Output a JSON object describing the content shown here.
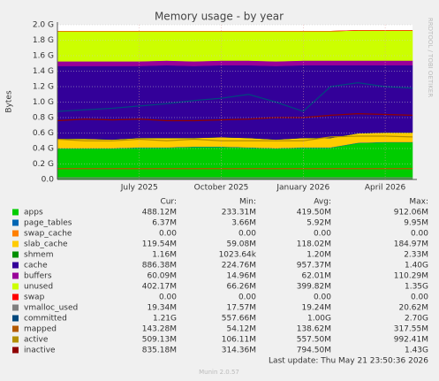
{
  "chart_data": {
    "type": "area",
    "title": "Memory usage - by year",
    "y_label": "Bytes",
    "watermark": "RRDTOOL / TOBI OETIKER",
    "categories": [
      null,
      null,
      null,
      "July 2025",
      null,
      null,
      "October 2025",
      null,
      null,
      "January 2026",
      null,
      null,
      "April 2026",
      null
    ],
    "ylim": [
      0,
      2.0
    ],
    "yticks": [
      {
        "value": 0,
        "label": "0.0"
      },
      {
        "value": 0.2,
        "label": "0.2 G"
      },
      {
        "value": 0.4,
        "label": "0.4 G"
      },
      {
        "value": 0.6,
        "label": "0.6 G"
      },
      {
        "value": 0.8,
        "label": "0.8 G"
      },
      {
        "value": 1.0,
        "label": "1.0 G"
      },
      {
        "value": 1.2,
        "label": "1.2 G"
      },
      {
        "value": 1.4,
        "label": "1.4 G"
      },
      {
        "value": 1.6,
        "label": "1.6 G"
      },
      {
        "value": 1.8,
        "label": "1.8 G"
      },
      {
        "value": 2.0,
        "label": "2.0 G"
      }
    ],
    "grid": true,
    "stat_headers": [
      "Cur:",
      "Min:",
      "Avg:",
      "Max:"
    ],
    "series": [
      {
        "name": "apps",
        "color": "#00cc00",
        "stack": true,
        "values": [
          0.4,
          0.4,
          0.4,
          0.41,
          0.41,
          0.42,
          0.42,
          0.41,
          0.4,
          0.41,
          0.41,
          0.47,
          0.48,
          0.48
        ],
        "stats": [
          "488.12M",
          "233.31M",
          "419.50M",
          "912.06M"
        ]
      },
      {
        "name": "page_tables",
        "color": "#0066b3",
        "stack": true,
        "values": [
          0.006,
          0.006,
          0.006,
          0.006,
          0.006,
          0.006,
          0.006,
          0.006,
          0.006,
          0.006,
          0.006,
          0.006,
          0.006,
          0.006
        ],
        "stats": [
          "6.37M",
          "3.66M",
          "5.92M",
          "9.95M"
        ]
      },
      {
        "name": "swap_cache",
        "color": "#ff8000",
        "stack": true,
        "values": [
          0,
          0,
          0,
          0,
          0,
          0,
          0,
          0,
          0,
          0,
          0,
          0,
          0,
          0
        ],
        "stats": [
          "0.00",
          "0.00",
          "0.00",
          "0.00"
        ]
      },
      {
        "name": "slab_cache",
        "color": "#ffcc00",
        "stack": true,
        "values": [
          0.12,
          0.12,
          0.11,
          0.12,
          0.12,
          0.11,
          0.12,
          0.12,
          0.11,
          0.12,
          0.12,
          0.12,
          0.12,
          0.12
        ],
        "stats": [
          "119.54M",
          "59.08M",
          "118.02M",
          "184.97M"
        ]
      },
      {
        "name": "shmem",
        "color": "#008f00",
        "stack": true,
        "values": [
          0.001,
          0.001,
          0.001,
          0.001,
          0.001,
          0.001,
          0.001,
          0.001,
          0.001,
          0.001,
          0.001,
          0.001,
          0.001,
          0.001
        ],
        "stats": [
          "1.16M",
          "1023.64k",
          "1.20M",
          "2.33M"
        ]
      },
      {
        "name": "cache",
        "color": "#330099",
        "stack": true,
        "values": [
          0.94,
          0.94,
          0.95,
          0.93,
          0.94,
          0.93,
          0.93,
          0.94,
          0.95,
          0.94,
          0.94,
          0.88,
          0.87,
          0.87
        ],
        "stats": [
          "886.38M",
          "224.76M",
          "957.37M",
          "1.40G"
        ]
      },
      {
        "name": "buffers",
        "color": "#990099",
        "stack": true,
        "values": [
          0.06,
          0.06,
          0.06,
          0.06,
          0.06,
          0.06,
          0.06,
          0.06,
          0.06,
          0.06,
          0.06,
          0.06,
          0.06,
          0.06
        ],
        "stats": [
          "60.09M",
          "14.96M",
          "62.01M",
          "110.29M"
        ]
      },
      {
        "name": "unused",
        "color": "#ccff00",
        "stack": true,
        "values": [
          0.39,
          0.39,
          0.39,
          0.39,
          0.38,
          0.39,
          0.38,
          0.38,
          0.39,
          0.38,
          0.38,
          0.39,
          0.39,
          0.39
        ],
        "stats": [
          "402.17M",
          "66.26M",
          "399.82M",
          "1.35G"
        ]
      },
      {
        "name": "swap",
        "color": "#ff0000",
        "stack": true,
        "values": [
          0,
          0,
          0,
          0,
          0,
          0,
          0,
          0,
          0,
          0,
          0,
          0,
          0,
          0
        ],
        "stats": [
          "0.00",
          "0.00",
          "0.00",
          "0.00"
        ]
      },
      {
        "name": "vmalloc_used",
        "color": "#808080",
        "stack": false,
        "values": [
          0.02,
          0.02,
          0.02,
          0.02,
          0.02,
          0.02,
          0.02,
          0.02,
          0.02,
          0.02,
          0.02,
          0.02,
          0.02,
          0.02
        ],
        "stats": [
          "19.34M",
          "17.57M",
          "19.24M",
          "20.62M"
        ]
      },
      {
        "name": "committed",
        "color": "#00487d",
        "stack": false,
        "values": [
          0.88,
          0.9,
          0.92,
          0.95,
          0.98,
          1.02,
          1.05,
          1.1,
          1.0,
          0.88,
          1.2,
          1.25,
          1.2,
          1.18
        ],
        "stats": [
          "1.21G",
          "557.66M",
          "1.00G",
          "2.70G"
        ]
      },
      {
        "name": "mapped",
        "color": "#b35a00",
        "stack": false,
        "values": [
          0.14,
          0.14,
          0.14,
          0.14,
          0.14,
          0.14,
          0.14,
          0.14,
          0.14,
          0.14,
          0.14,
          0.14,
          0.14,
          0.14
        ],
        "stats": [
          "143.28M",
          "54.12M",
          "138.62M",
          "317.55M"
        ]
      },
      {
        "name": "active",
        "color": "#b38f00",
        "stack": false,
        "values": [
          0.52,
          0.5,
          0.5,
          0.52,
          0.5,
          0.52,
          0.5,
          0.5,
          0.5,
          0.5,
          0.55,
          0.56,
          0.56,
          0.55
        ],
        "stats": [
          "509.13M",
          "106.11M",
          "557.50M",
          "992.41M"
        ]
      },
      {
        "name": "inactive",
        "color": "#8f0000",
        "stack": false,
        "values": [
          0.76,
          0.78,
          0.77,
          0.78,
          0.76,
          0.76,
          0.77,
          0.78,
          0.8,
          0.8,
          0.83,
          0.85,
          0.84,
          0.83
        ],
        "stats": [
          "835.18M",
          "314.36M",
          "794.50M",
          "1.43G"
        ]
      }
    ],
    "last_update": "Last update: Thu May 21 23:50:36 2026",
    "footer": "Munin 2.0.57"
  }
}
